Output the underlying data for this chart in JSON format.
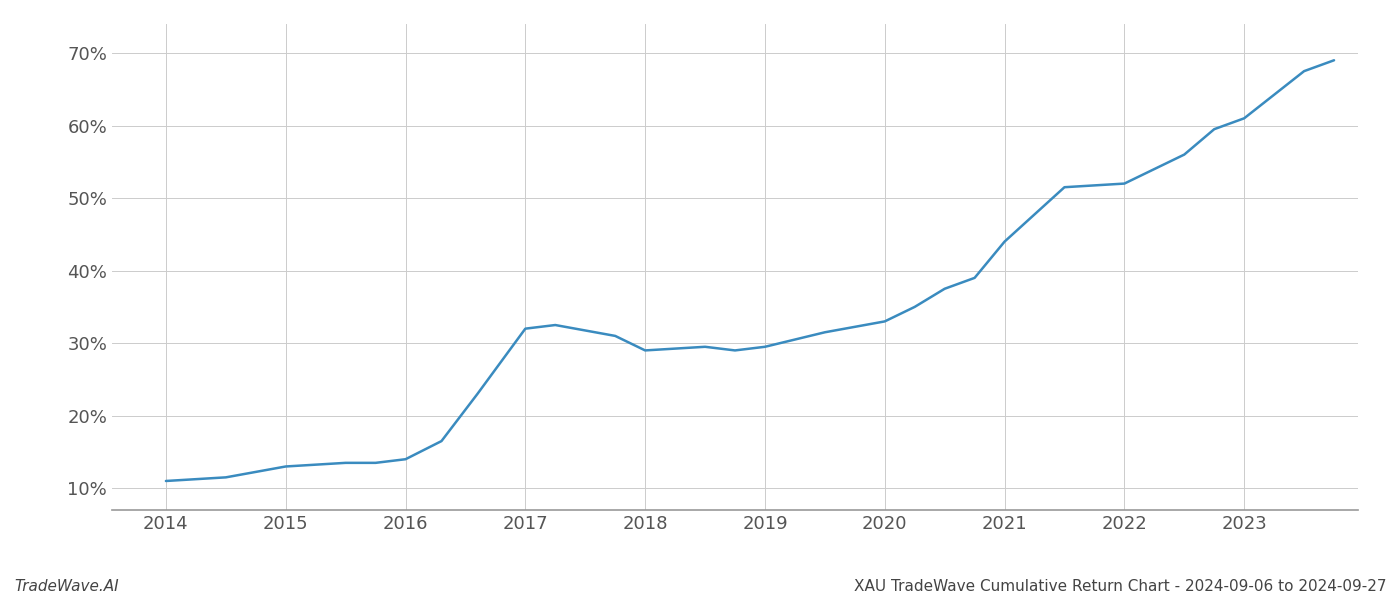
{
  "x_years": [
    2014.0,
    2014.5,
    2015.0,
    2015.5,
    2015.75,
    2016.0,
    2016.3,
    2016.6,
    2017.0,
    2017.25,
    2017.75,
    2018.0,
    2018.5,
    2018.75,
    2019.0,
    2019.5,
    2020.0,
    2020.25,
    2020.5,
    2020.75,
    2021.0,
    2021.5,
    2022.0,
    2022.5,
    2022.75,
    2023.0,
    2023.5,
    2023.75
  ],
  "y_values": [
    11.0,
    11.5,
    13.0,
    13.5,
    13.5,
    14.0,
    16.5,
    23.0,
    32.0,
    32.5,
    31.0,
    29.0,
    29.5,
    29.0,
    29.5,
    31.5,
    33.0,
    35.0,
    37.5,
    39.0,
    44.0,
    51.5,
    52.0,
    56.0,
    59.5,
    61.0,
    67.5,
    69.0
  ],
  "line_color": "#3a8bbf",
  "line_width": 1.8,
  "xlim": [
    2013.55,
    2023.95
  ],
  "ylim": [
    7,
    74
  ],
  "yticks": [
    10,
    20,
    30,
    40,
    50,
    60,
    70
  ],
  "xticks": [
    2014,
    2015,
    2016,
    2017,
    2018,
    2019,
    2020,
    2021,
    2022,
    2023
  ],
  "grid_color": "#cccccc",
  "grid_linewidth": 0.7,
  "background_color": "#ffffff",
  "footer_left": "TradeWave.AI",
  "footer_right": "XAU TradeWave Cumulative Return Chart - 2024-09-06 to 2024-09-27",
  "footer_fontsize": 11,
  "tick_fontsize": 13,
  "spine_color": "#999999"
}
